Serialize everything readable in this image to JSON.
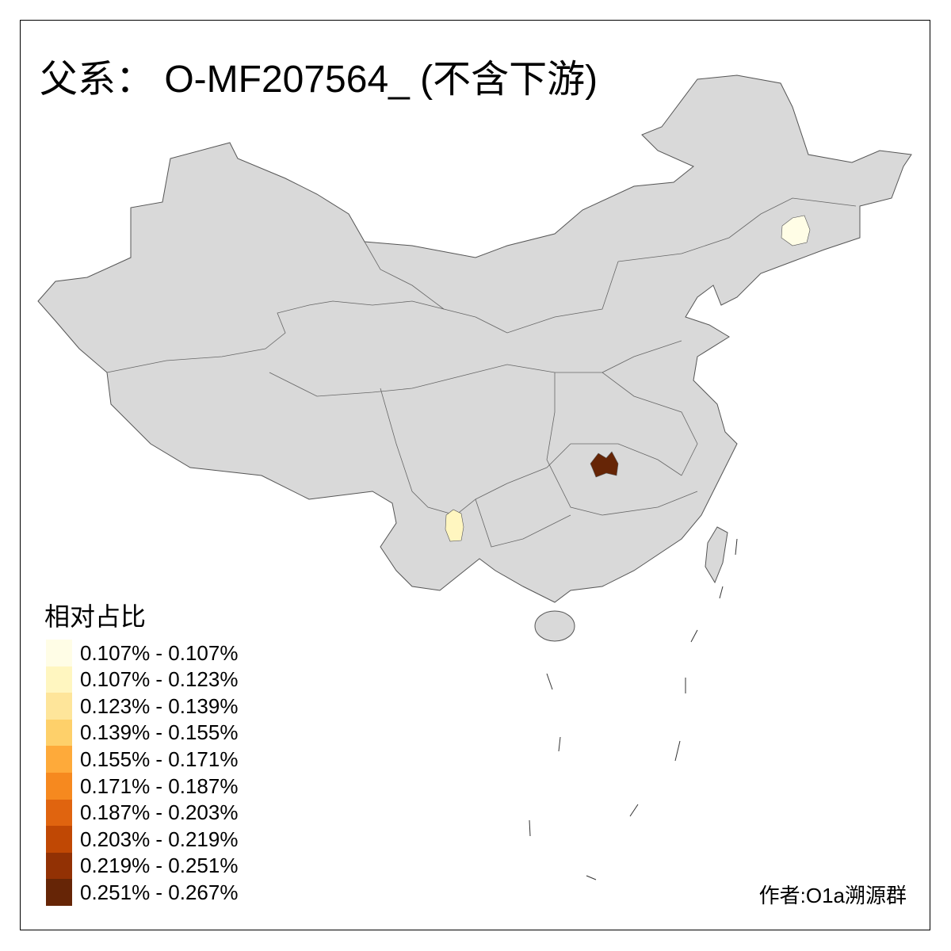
{
  "title": "父系： O-MF207564_ (不含下游)",
  "legend": {
    "title": "相对占比",
    "items": [
      {
        "label": "0.107% - 0.107%",
        "color": "#fffde6"
      },
      {
        "label": "0.107% - 0.123%",
        "color": "#fff6c0"
      },
      {
        "label": "0.123% - 0.139%",
        "color": "#fee59a"
      },
      {
        "label": "0.139% - 0.155%",
        "color": "#fed06a"
      },
      {
        "label": "0.155% - 0.171%",
        "color": "#feaa3a"
      },
      {
        "label": "0.171% - 0.187%",
        "color": "#f6891f"
      },
      {
        "label": "0.187% - 0.203%",
        "color": "#e0640f"
      },
      {
        "label": "0.203% - 0.219%",
        "color": "#c04804"
      },
      {
        "label": "0.219% - 0.251%",
        "color": "#923104"
      },
      {
        "label": "0.251% - 0.267%",
        "color": "#662506"
      }
    ]
  },
  "map": {
    "base_color": "#d9d9d9",
    "border_color": "#555555",
    "highlighted_regions": [
      {
        "area": "Hubei (Wuhan area)",
        "class": 9
      },
      {
        "area": "Yunnan (south)",
        "class": 1
      },
      {
        "area": "Jilin",
        "class": 0
      }
    ]
  },
  "author": "作者:O1a溯源群"
}
